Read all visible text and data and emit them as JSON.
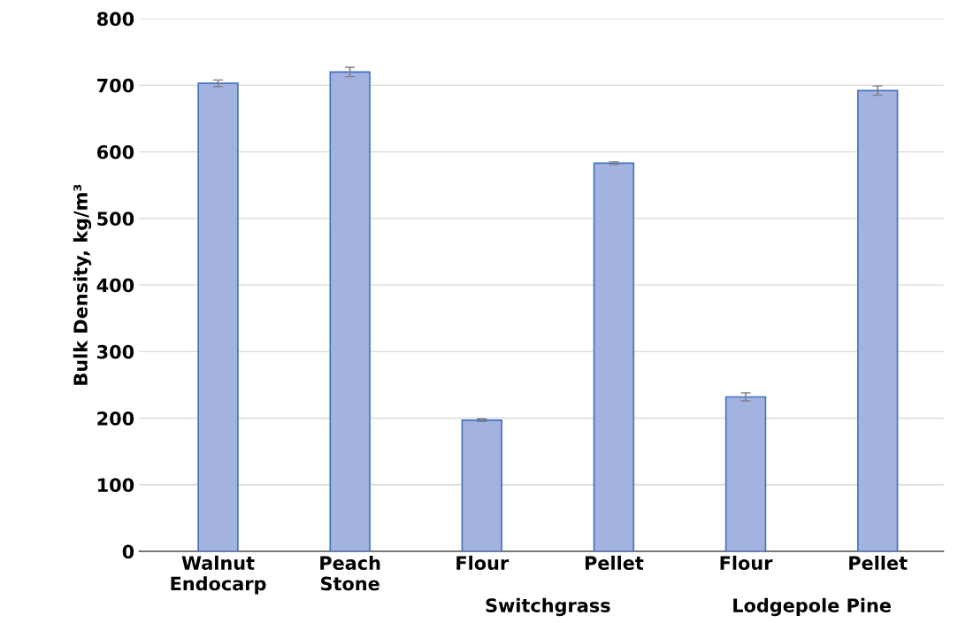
{
  "chart_data": {
    "type": "bar",
    "ylabel": "Bulk Density, kg/m³",
    "categories": [
      "Walnut\nEndocarp",
      "Peach\nStone",
      "Flour",
      "Pellet",
      "Flour",
      "Pellet"
    ],
    "values": [
      703,
      720,
      197,
      583,
      232,
      692
    ],
    "errors": [
      5,
      7,
      2,
      2,
      6,
      7
    ],
    "color": "#a3b3df",
    "annotations": [
      "Switchgrass",
      "Lodgepole Pine"
    ],
    "ylim": [
      0,
      800
    ],
    "yticks": [
      0,
      100,
      200,
      300,
      400,
      500,
      600,
      700,
      800
    ],
    "grid": "y"
  }
}
